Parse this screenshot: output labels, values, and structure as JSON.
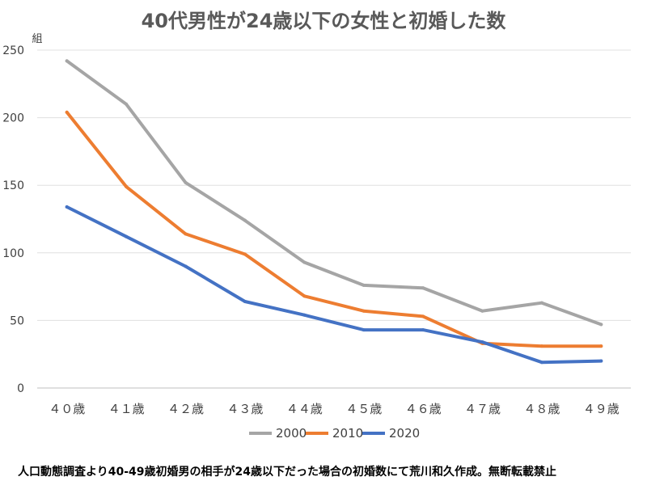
{
  "chart_data": {
    "type": "line",
    "title": "40代男性が24歳以下の女性と初婚した数",
    "ylabel": "組",
    "xlabel": "",
    "categories": [
      "４０歳",
      "４１歳",
      "４２歳",
      "４３歳",
      "４４歳",
      "４５歳",
      "４６歳",
      "４７歳",
      "４８歳",
      "４９歳"
    ],
    "ylim": [
      0,
      250
    ],
    "yticks": [
      0,
      50,
      100,
      150,
      200,
      250
    ],
    "grid": true,
    "legend_position": "bottom",
    "series": [
      {
        "name": "2000",
        "color": "#a5a5a5",
        "values": [
          242,
          210,
          152,
          124,
          93,
          76,
          74,
          57,
          63,
          47
        ]
      },
      {
        "name": "2010",
        "color": "#ed7d31",
        "values": [
          204,
          149,
          114,
          99,
          68,
          57,
          53,
          33,
          31,
          31
        ]
      },
      {
        "name": "2020",
        "color": "#4472c4",
        "values": [
          134,
          112,
          90,
          64,
          54,
          43,
          43,
          34,
          19,
          20
        ]
      }
    ]
  },
  "footnote": "人口動態調査より40-49歳初婚男の相手が24歳以下だった場合の初婚数にて荒川和久作成。無断転載禁止"
}
